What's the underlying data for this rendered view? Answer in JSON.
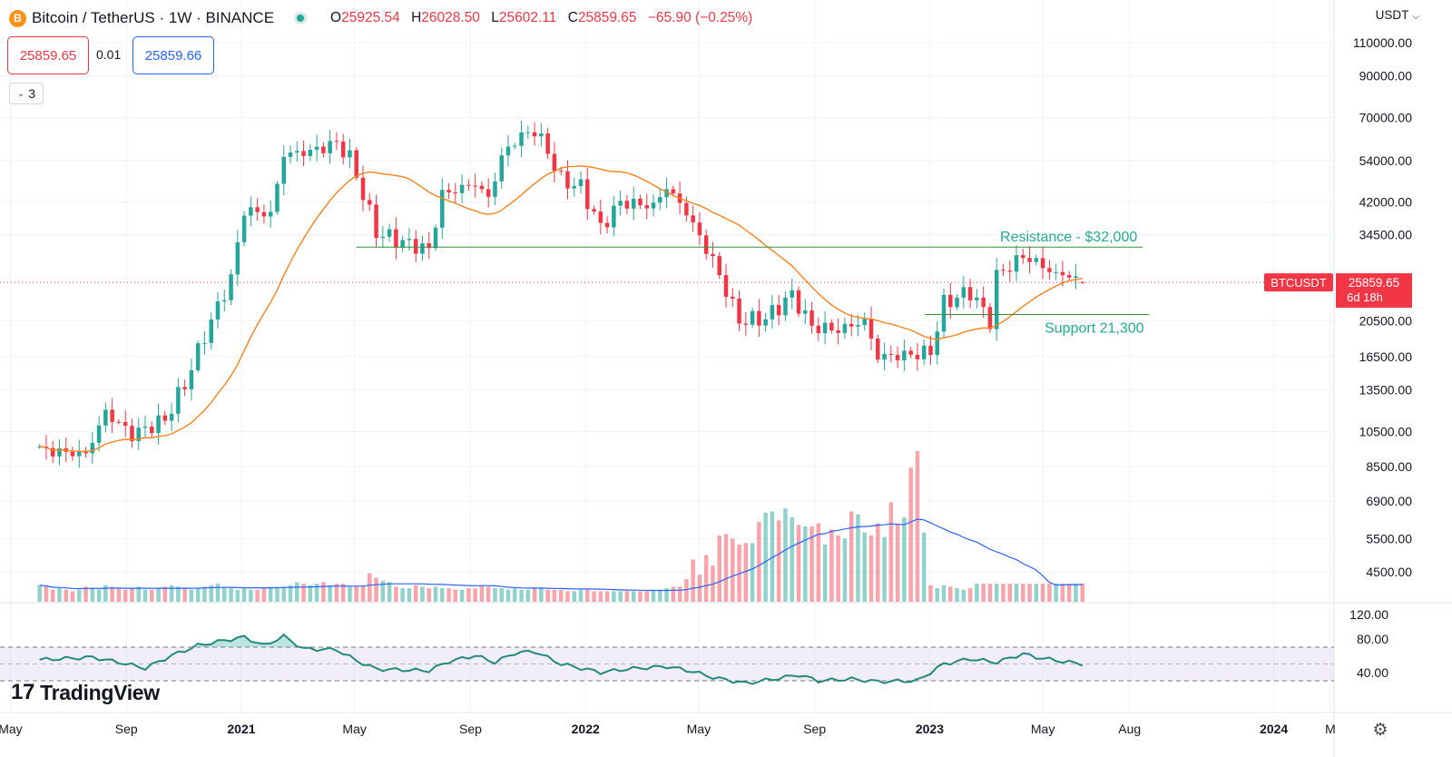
{
  "header": {
    "coin_icon": "B",
    "symbol_title": "Bitcoin / TetherUS · 1W · BINANCE",
    "open_key": "O",
    "open_val": "25925.54",
    "high_key": "H",
    "high_val": "26028.50",
    "low_key": "L",
    "low_val": "25602.11",
    "close_key": "C",
    "close_val": "25859.65",
    "change": "−65.90 (−0.25%)",
    "sell_price": "25859.65",
    "spread": "0.01",
    "buy_price": "25859.66",
    "indicator_count": "3",
    "currency": "USDT"
  },
  "branding": {
    "logo_text": "TradingView",
    "logo_mark": "17"
  },
  "colors": {
    "up": "#26a69a",
    "down": "#f23645",
    "sma": "#f7821b",
    "volume_ma": "#2962ff",
    "rsi": "#21897e",
    "level_line": "#388e3c",
    "level_text": "#22ab94",
    "price_tag": "#f23645"
  },
  "chart_data": [
    {
      "type": "candlestick",
      "title": "Bitcoin / TetherUS · 1W · BINANCE",
      "scale": "log",
      "y_ticks": [
        110000,
        90000,
        70000,
        54000,
        42000,
        34500,
        20500,
        16500,
        13500,
        10500,
        8500,
        6900,
        5500,
        4500
      ],
      "y_tick_labels": [
        "110000.00",
        "90000.00",
        "70000.00",
        "54000.00",
        "42000.00",
        "34500.00",
        "20500.00",
        "16500.00",
        "13500.00",
        "10500.00",
        "8500.00",
        "6900.00",
        "5500.00",
        "4500.00"
      ],
      "x_ticks": [
        {
          "label": "May",
          "date": "2020-05-01"
        },
        {
          "label": "Sep",
          "date": "2020-09-01"
        },
        {
          "label": "2021",
          "date": "2021-01-01"
        },
        {
          "label": "May",
          "date": "2021-05-01"
        },
        {
          "label": "Sep",
          "date": "2021-09-01"
        },
        {
          "label": "2022",
          "date": "2022-01-01"
        },
        {
          "label": "May",
          "date": "2022-05-01"
        },
        {
          "label": "Sep",
          "date": "2022-09-01"
        },
        {
          "label": "2023",
          "date": "2023-01-01"
        },
        {
          "label": "May",
          "date": "2023-05-01"
        },
        {
          "label": "Aug",
          "date": "2023-08-01"
        },
        {
          "label": "2024",
          "date": "2024-01-01"
        },
        {
          "label": "M",
          "date": "2024-03-01"
        }
      ],
      "start_date": "2020-06-01",
      "weekly_close_anchors": [
        [
          "2020-06-01",
          9400
        ],
        [
          "2020-07-20",
          9150
        ],
        [
          "2020-08-10",
          11800
        ],
        [
          "2020-09-07",
          10300
        ],
        [
          "2020-10-12",
          11300
        ],
        [
          "2020-11-02",
          14000
        ],
        [
          "2020-11-23",
          18800
        ],
        [
          "2020-12-21",
          26500
        ],
        [
          "2021-01-04",
          40000
        ],
        [
          "2021-02-01",
          39000
        ],
        [
          "2021-02-15",
          56000
        ],
        [
          "2021-03-15",
          57000
        ],
        [
          "2021-04-12",
          60000
        ],
        [
          "2021-04-26",
          55000
        ],
        [
          "2021-05-10",
          44000
        ],
        [
          "2021-05-24",
          35000
        ],
        [
          "2021-06-21",
          33000
        ],
        [
          "2021-07-19",
          31500
        ],
        [
          "2021-08-02",
          44000
        ],
        [
          "2021-09-06",
          47000
        ],
        [
          "2021-09-20",
          43000
        ],
        [
          "2021-10-04",
          55000
        ],
        [
          "2021-10-18",
          61000
        ],
        [
          "2021-11-08",
          65000
        ],
        [
          "2021-11-22",
          57000
        ],
        [
          "2021-12-06",
          48000
        ],
        [
          "2021-12-27",
          46000
        ],
        [
          "2022-01-17",
          36000
        ],
        [
          "2022-02-07",
          42000
        ],
        [
          "2022-03-14",
          41000
        ],
        [
          "2022-03-28",
          46000
        ],
        [
          "2022-04-18",
          39500
        ],
        [
          "2022-05-02",
          34000
        ],
        [
          "2022-05-16",
          29500
        ],
        [
          "2022-06-13",
          20500
        ],
        [
          "2022-07-11",
          20800
        ],
        [
          "2022-08-08",
          24000
        ],
        [
          "2022-08-29",
          19800
        ],
        [
          "2022-09-26",
          19400
        ],
        [
          "2022-10-24",
          20500
        ],
        [
          "2022-11-07",
          16500
        ],
        [
          "2022-12-12",
          16700
        ],
        [
          "2023-01-02",
          17000
        ],
        [
          "2023-01-16",
          22800
        ],
        [
          "2023-02-13",
          24500
        ],
        [
          "2023-03-06",
          20500
        ],
        [
          "2023-03-13",
          26900
        ],
        [
          "2023-04-10",
          30300
        ],
        [
          "2023-04-24",
          29200
        ],
        [
          "2023-05-15",
          27100
        ],
        [
          "2023-05-29",
          27000
        ],
        [
          "2023-06-12",
          25860
        ]
      ],
      "last_week": {
        "open": 25925.54,
        "high": 26028.5,
        "low": 25602.11,
        "close": 25859.65
      },
      "sma_period": 20,
      "horizontal_levels": [
        {
          "name": "Resistance",
          "label": "Resistance - $32,000",
          "value": 32000,
          "from": "2021-05-03",
          "to": "2023-08-15"
        },
        {
          "name": "Support",
          "label": "Support 21,300",
          "value": 21300,
          "from": "2022-12-27",
          "to": "2023-08-22"
        }
      ],
      "last_price_tag": {
        "symbol": "BTCUSDT",
        "price": "25859.65",
        "countdown": "6d 18h",
        "value": 25859.65
      },
      "volume": {
        "y_max": 100,
        "values": [
          11,
          10,
          8,
          9,
          8,
          7,
          8,
          10,
          9,
          8,
          11,
          10,
          9,
          8,
          9,
          10,
          8,
          8,
          9,
          10,
          11,
          10,
          9,
          8,
          9,
          10,
          11,
          12,
          10,
          9,
          8,
          9,
          8,
          8,
          9,
          10,
          9,
          10,
          11,
          13,
          12,
          11,
          12,
          13,
          11,
          12,
          12,
          10,
          10,
          11,
          19,
          16,
          14,
          13,
          10,
          9,
          9,
          11,
          10,
          9,
          10,
          9,
          9,
          8,
          8,
          9,
          9,
          11,
          10,
          9,
          9,
          8,
          9,
          8,
          8,
          9,
          9,
          8,
          8,
          8,
          7,
          7,
          8,
          8,
          7,
          7,
          7,
          7,
          7,
          7,
          7,
          7,
          7,
          8,
          8,
          9,
          10,
          10,
          15,
          28,
          18,
          31,
          24,
          44,
          45,
          42,
          38,
          39,
          39,
          53,
          59,
          60,
          54,
          62,
          56,
          51,
          50,
          50,
          52,
          38,
          48,
          44,
          42,
          60,
          58,
          46,
          44,
          52,
          43,
          66,
          52,
          56,
          89,
          100,
          46,
          11,
          9,
          11,
          10,
          9,
          8,
          9,
          12
        ]
      },
      "rsi": {
        "y_ticks": [
          120,
          80,
          40
        ],
        "upper_band": 70,
        "lower_band": 30,
        "mid": 50,
        "anchors": [
          [
            "2020-06-01",
            55
          ],
          [
            "2020-07-27",
            58
          ],
          [
            "2020-08-24",
            52
          ],
          [
            "2020-09-21",
            45
          ],
          [
            "2020-10-19",
            60
          ],
          [
            "2020-11-16",
            72
          ],
          [
            "2020-12-14",
            78
          ],
          [
            "2021-01-04",
            82
          ],
          [
            "2021-01-25",
            72
          ],
          [
            "2021-02-15",
            83
          ],
          [
            "2021-03-08",
            68
          ],
          [
            "2021-04-12",
            67
          ],
          [
            "2021-05-03",
            54
          ],
          [
            "2021-05-24",
            44
          ],
          [
            "2021-07-19",
            42
          ],
          [
            "2021-08-09",
            53
          ],
          [
            "2021-09-06",
            60
          ],
          [
            "2021-09-27",
            52
          ],
          [
            "2021-10-18",
            63
          ],
          [
            "2021-11-08",
            65
          ],
          [
            "2021-12-06",
            50
          ],
          [
            "2022-01-17",
            40
          ],
          [
            "2022-02-14",
            44
          ],
          [
            "2022-03-28",
            47
          ],
          [
            "2022-04-25",
            41
          ],
          [
            "2022-05-16",
            34
          ],
          [
            "2022-06-20",
            27
          ],
          [
            "2022-07-25",
            33
          ],
          [
            "2022-08-15",
            37
          ],
          [
            "2022-09-05",
            30
          ],
          [
            "2022-10-10",
            32
          ],
          [
            "2022-11-07",
            29
          ],
          [
            "2022-12-19",
            30
          ],
          [
            "2023-01-16",
            50
          ],
          [
            "2023-02-13",
            56
          ],
          [
            "2023-03-13",
            52
          ],
          [
            "2023-04-10",
            62
          ],
          [
            "2023-04-24",
            58
          ],
          [
            "2023-05-22",
            53
          ],
          [
            "2023-06-12",
            50
          ]
        ]
      }
    }
  ]
}
